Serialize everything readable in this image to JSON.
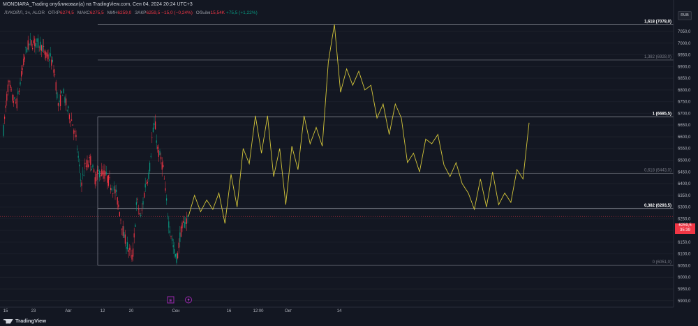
{
  "header": {
    "publisher": "MONDIARA_Trading опубликовал(а) на TradingView.com, Сен 04, 2024 20:24 UTC+3",
    "symbol": "ЛУКОЙЛ, 1ч, ALOR",
    "open_label": "ОТКР",
    "open_value": "6274,5",
    "high_label": "МАКС",
    "high_value": "6275,5",
    "low_label": "МИН",
    "low_value": "6259,0",
    "close_label": "ЗАКР",
    "close_value": "6259,5",
    "change": "−15,0 (−0,24%)",
    "volume_label": "Объём",
    "volume_value": "15,54K",
    "volume_change": "+75,5 (+1,22%)"
  },
  "currency": "RUB",
  "current_price": {
    "value": "6259,5",
    "timer": "35:39"
  },
  "footer": {
    "brand": "TradingView"
  },
  "markers": {
    "earnings": "E",
    "dividend": "D"
  },
  "colors": {
    "up": "#089981",
    "down": "#f23645",
    "projection": "#d4c63a",
    "fib": "#b2b5be",
    "background": "#131722"
  },
  "chart_data": {
    "type": "candlestick",
    "y_axis": {
      "ticks": [
        "7050,0",
        "7000,0",
        "6950,0",
        "6900,0",
        "6850,0",
        "6800,0",
        "6750,0",
        "6700,0",
        "6650,0",
        "6600,0",
        "6550,0",
        "6500,0",
        "6450,0",
        "6400,0",
        "6350,0",
        "6300,0",
        "6250,0",
        "6200,0",
        "6150,0",
        "6100,0",
        "6050,0",
        "6000,0",
        "5950,0",
        "5900,0"
      ],
      "range": [
        5890,
        7120
      ]
    },
    "x_axis": {
      "ticks": [
        "15",
        "23",
        "Авг",
        "12",
        "20",
        "Сен",
        "16",
        "12:00",
        "Окт",
        "14"
      ]
    },
    "fibonacci": [
      {
        "label": "1,618 (7078,0)",
        "value": 7078.0,
        "bold": true
      },
      {
        "label": "1,382 (6928,0)",
        "value": 6928.0,
        "bold": false
      },
      {
        "label": "1 (6685,5)",
        "value": 6685.5,
        "bold": true
      },
      {
        "label": "0,618 (6443,0)",
        "value": 6443.0,
        "bold": false
      },
      {
        "label": "0,382 (6293,5)",
        "value": 6293.5,
        "bold": true
      },
      {
        "label": "0 (6051,0)",
        "value": 6051.0,
        "bold": false
      }
    ],
    "projection_path": [
      6260,
      6350,
      6280,
      6330,
      6290,
      6360,
      6230,
      6440,
      6300,
      6550,
      6485,
      6690,
      6530,
      6690,
      6430,
      6550,
      6310,
      6560,
      6460,
      6690,
      6570,
      6640,
      6560,
      6920,
      7080,
      6790,
      6890,
      6820,
      6880,
      6800,
      6820,
      6680,
      6740,
      6610,
      6740,
      6680,
      6490,
      6530,
      6450,
      6590,
      6570,
      6610,
      6480,
      6430,
      6490,
      6400,
      6360,
      6290,
      6420,
      6300,
      6450,
      6310,
      6360,
      6320,
      6460,
      6420,
      6660
    ],
    "current_price": 6259.5
  }
}
